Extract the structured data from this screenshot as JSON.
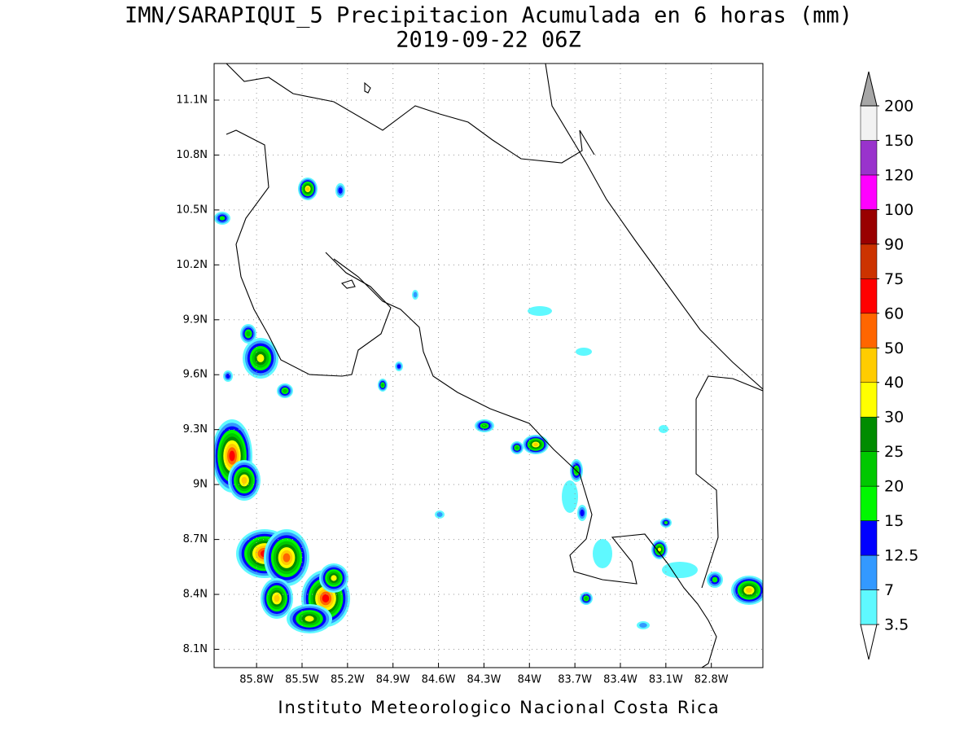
{
  "title": "IMN/SARAPIQUI_5 Precipitacion Acumulada en 6 horas (mm)",
  "subtitle": "2019-09-22 06Z",
  "footer": "Instituto Meteorologico Nacional Costa Rica",
  "map": {
    "xlim": [
      -86.08,
      -82.46
    ],
    "ylim": [
      8.0,
      11.3
    ],
    "grid": true,
    "lon_ticks": [
      {
        "value": -85.8,
        "label": "85.8W"
      },
      {
        "value": -85.5,
        "label": "85.5W"
      },
      {
        "value": -85.2,
        "label": "85.2W"
      },
      {
        "value": -84.9,
        "label": "84.9W"
      },
      {
        "value": -84.6,
        "label": "84.6W"
      },
      {
        "value": -84.3,
        "label": "84.3W"
      },
      {
        "value": -84.0,
        "label": "84W"
      },
      {
        "value": -83.7,
        "label": "83.7W"
      },
      {
        "value": -83.4,
        "label": "83.4W"
      },
      {
        "value": -83.1,
        "label": "83.1W"
      },
      {
        "value": -82.8,
        "label": "82.8W"
      }
    ],
    "lat_ticks": [
      {
        "value": 8.1,
        "label": "8.1N"
      },
      {
        "value": 8.4,
        "label": "8.4N"
      },
      {
        "value": 8.7,
        "label": "8.7N"
      },
      {
        "value": 9.0,
        "label": "9N"
      },
      {
        "value": 9.3,
        "label": "9.3N"
      },
      {
        "value": 9.6,
        "label": "9.6N"
      },
      {
        "value": 9.9,
        "label": "9.9N"
      },
      {
        "value": 10.2,
        "label": "10.2N"
      },
      {
        "value": 10.5,
        "label": "10.5N"
      },
      {
        "value": 10.8,
        "label": "10.8N"
      },
      {
        "value": 11.1,
        "label": "11.1N"
      }
    ]
  },
  "colorbar": {
    "levels": [
      3.5,
      7,
      12.5,
      15,
      20,
      25,
      30,
      40,
      50,
      60,
      75,
      90,
      100,
      120,
      150,
      200
    ],
    "colors": [
      "#ffffff",
      "#5ff9ff",
      "#3399ff",
      "#0000ff",
      "#00f700",
      "#00c800",
      "#008c00",
      "#ffff00",
      "#ffcc00",
      "#ff6600",
      "#ff0000",
      "#cc3300",
      "#990000",
      "#ff00ff",
      "#9933cc",
      "#f2f2f2",
      "#a6a6a6"
    ]
  }
}
